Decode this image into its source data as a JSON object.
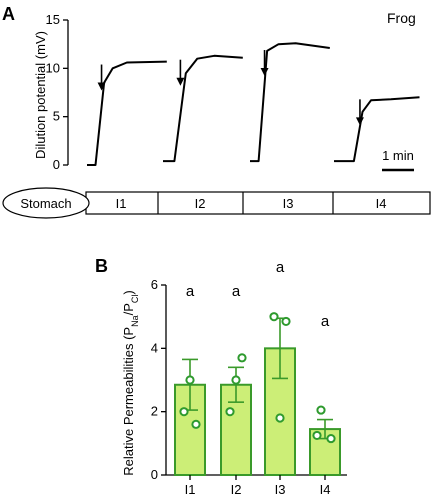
{
  "chart_data": [
    {
      "panel": "A",
      "type": "line",
      "annotation": "Frog",
      "ylabel": "Dilution potential (mV)",
      "ylim": [
        0,
        15
      ],
      "yticks": [
        0,
        5,
        10,
        15
      ],
      "scale_bar_label": "1 min",
      "segments_label": [
        "Stomach",
        "I1",
        "I2",
        "I3",
        "I4"
      ],
      "series": [
        {
          "name": "I1",
          "points": [
            [
              0,
              0
            ],
            [
              0.15,
              0
            ],
            [
              0.3,
              8.5
            ],
            [
              0.45,
              10.0
            ],
            [
              0.7,
              10.6
            ],
            [
              1.4,
              10.7
            ]
          ],
          "arrow_at": 10.6
        },
        {
          "name": "I2",
          "points": [
            [
              0,
              0.4
            ],
            [
              0.2,
              0.4
            ],
            [
              0.4,
              9.5
            ],
            [
              0.6,
              11.0
            ],
            [
              0.9,
              11.3
            ],
            [
              1.4,
              11.1
            ]
          ],
          "arrow_at": 11.1
        },
        {
          "name": "I3",
          "points": [
            [
              0,
              0.4
            ],
            [
              0.15,
              0.4
            ],
            [
              0.3,
              11.8
            ],
            [
              0.5,
              12.5
            ],
            [
              0.8,
              12.6
            ],
            [
              1.4,
              12.1
            ]
          ],
          "arrow_at": 12.1
        },
        {
          "name": "I4",
          "points": [
            [
              0,
              0.4
            ],
            [
              0.35,
              0.4
            ],
            [
              0.5,
              5.5
            ],
            [
              0.65,
              6.7
            ],
            [
              1.0,
              6.8
            ],
            [
              1.5,
              7.0
            ]
          ],
          "arrow_at": 7.0
        }
      ]
    },
    {
      "panel": "B",
      "type": "bar",
      "ylabel_main": "Relative Permeabilities (P",
      "ylabel_sub1": "Na",
      "ylabel_mid": "/P",
      "ylabel_sub2": "Cl",
      "ylabel_end": ")",
      "ylim": [
        0,
        6
      ],
      "yticks": [
        0,
        2,
        4,
        6
      ],
      "categories": [
        "I1",
        "I2",
        "I3",
        "I4"
      ],
      "values": [
        2.85,
        2.85,
        4.0,
        1.45
      ],
      "errors": [
        0.8,
        0.55,
        0.95,
        0.3
      ],
      "points": [
        [
          2.0,
          1.6,
          3.0
        ],
        [
          2.0,
          3.7,
          3.0
        ],
        [
          5.0,
          4.85,
          1.8
        ],
        [
          2.05,
          1.15,
          1.25
        ]
      ],
      "significance": [
        "a",
        "a",
        "a",
        "a"
      ],
      "bar_color": "#ccee77",
      "edge_color": "#3a9a2a",
      "point_color": "#2e9a2e",
      "letter_color": "#1e8c1e"
    }
  ],
  "labels": {
    "panelA": "A",
    "panelB": "B"
  }
}
